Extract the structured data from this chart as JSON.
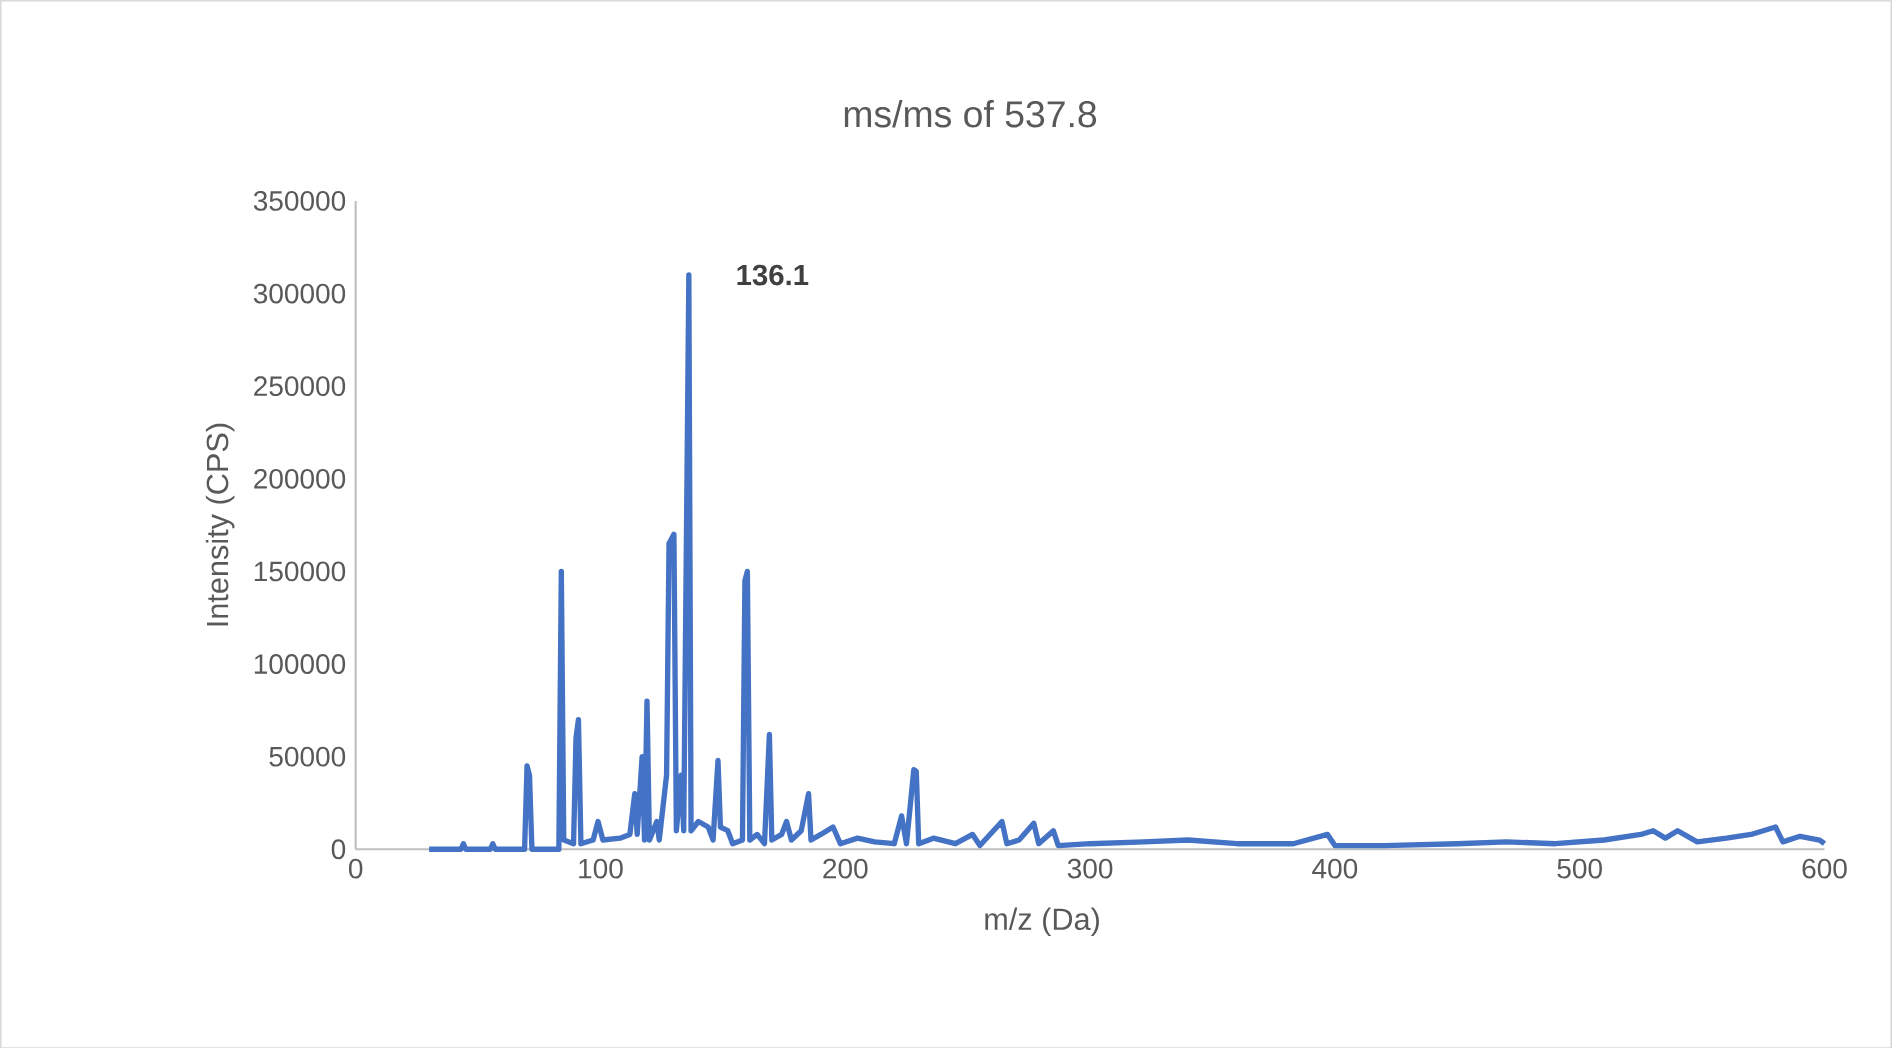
{
  "chart_data": {
    "type": "line",
    "title": "ms/ms of 537.8",
    "xlabel": "m/z (Da)",
    "ylabel": "Intensity (CPS)",
    "color": "#4472c4",
    "xlim": [
      0,
      600
    ],
    "xticks": [
      0,
      100,
      200,
      300,
      400,
      500,
      600
    ],
    "ylim": [
      0,
      350000
    ],
    "yticks": [
      0,
      50000,
      100000,
      150000,
      200000,
      250000,
      300000,
      350000
    ],
    "grid": false,
    "marker": "none",
    "annotations": [
      {
        "text": "136.1",
        "x": 136.1,
        "y": 310000
      }
    ],
    "x": [
      30,
      43,
      44,
      45,
      55,
      56,
      57,
      69,
      70,
      71,
      72,
      83,
      84,
      85,
      89,
      90,
      91,
      92,
      97,
      99,
      101,
      108,
      112,
      114,
      115,
      117,
      118,
      119,
      120,
      123,
      124,
      127,
      128,
      130,
      131,
      133,
      134,
      136.1,
      137,
      140,
      144,
      146,
      148,
      149,
      152,
      154,
      158,
      159,
      160,
      161,
      164,
      167,
      169,
      170,
      174,
      176,
      178,
      182,
      185,
      186,
      190,
      195,
      198,
      205,
      212,
      220,
      223,
      225,
      228,
      229,
      230,
      236,
      245,
      252,
      255,
      264,
      266,
      271,
      277,
      279,
      285,
      287,
      300,
      322,
      340,
      360,
      383,
      397,
      400,
      420,
      450,
      470,
      490,
      510,
      525,
      530,
      535,
      540,
      548,
      560,
      570,
      580,
      583,
      590,
      598,
      600
    ],
    "values": [
      0,
      0,
      3000,
      0,
      0,
      3000,
      0,
      0,
      45000,
      40000,
      0,
      0,
      150000,
      5000,
      3000,
      60000,
      70000,
      3000,
      5000,
      15000,
      5000,
      6000,
      8000,
      30000,
      8000,
      50000,
      5000,
      80000,
      5000,
      15000,
      5000,
      40000,
      165000,
      170000,
      10000,
      40000,
      10000,
      310000,
      10000,
      15000,
      12000,
      5000,
      48000,
      12000,
      10000,
      3000,
      5000,
      145000,
      150000,
      5000,
      8000,
      3000,
      62000,
      5000,
      8000,
      15000,
      5000,
      10000,
      30000,
      5000,
      8000,
      12000,
      3000,
      6000,
      4000,
      3000,
      18000,
      3000,
      43000,
      42000,
      3000,
      6000,
      3000,
      8000,
      2000,
      15000,
      3000,
      5000,
      14000,
      3000,
      10000,
      2000,
      3000,
      4000,
      5000,
      3000,
      3000,
      8000,
      2000,
      2000,
      3000,
      4000,
      3000,
      5000,
      8000,
      10000,
      6000,
      10000,
      4000,
      6000,
      8000,
      12000,
      4000,
      7000,
      5000,
      3000
    ]
  }
}
